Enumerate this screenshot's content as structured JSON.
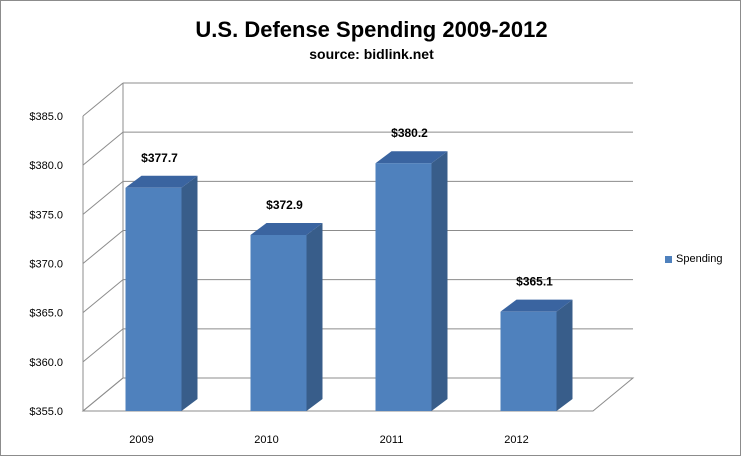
{
  "chart_data": {
    "type": "bar",
    "title": "U.S. Defense Spending 2009-2012",
    "subtitle": "source: bidlink.net",
    "categories": [
      "2009",
      "2010",
      "2011",
      "2012"
    ],
    "series": [
      {
        "name": "Spending",
        "values": [
          377.7,
          372.9,
          380.2,
          365.1
        ],
        "color": "#4f81bd"
      }
    ],
    "data_labels": [
      "$377.7",
      "$372.9",
      "$380.2",
      "$365.1"
    ],
    "y_ticks": [
      355,
      360,
      365,
      370,
      375,
      380,
      385
    ],
    "y_tick_labels": [
      "$355.0",
      "$360.0",
      "$365.0",
      "$370.0",
      "$375.0",
      "$380.0",
      "$385.0"
    ],
    "ylim": [
      355,
      385
    ],
    "grid": true,
    "legend_position": "right",
    "three_d": true
  }
}
